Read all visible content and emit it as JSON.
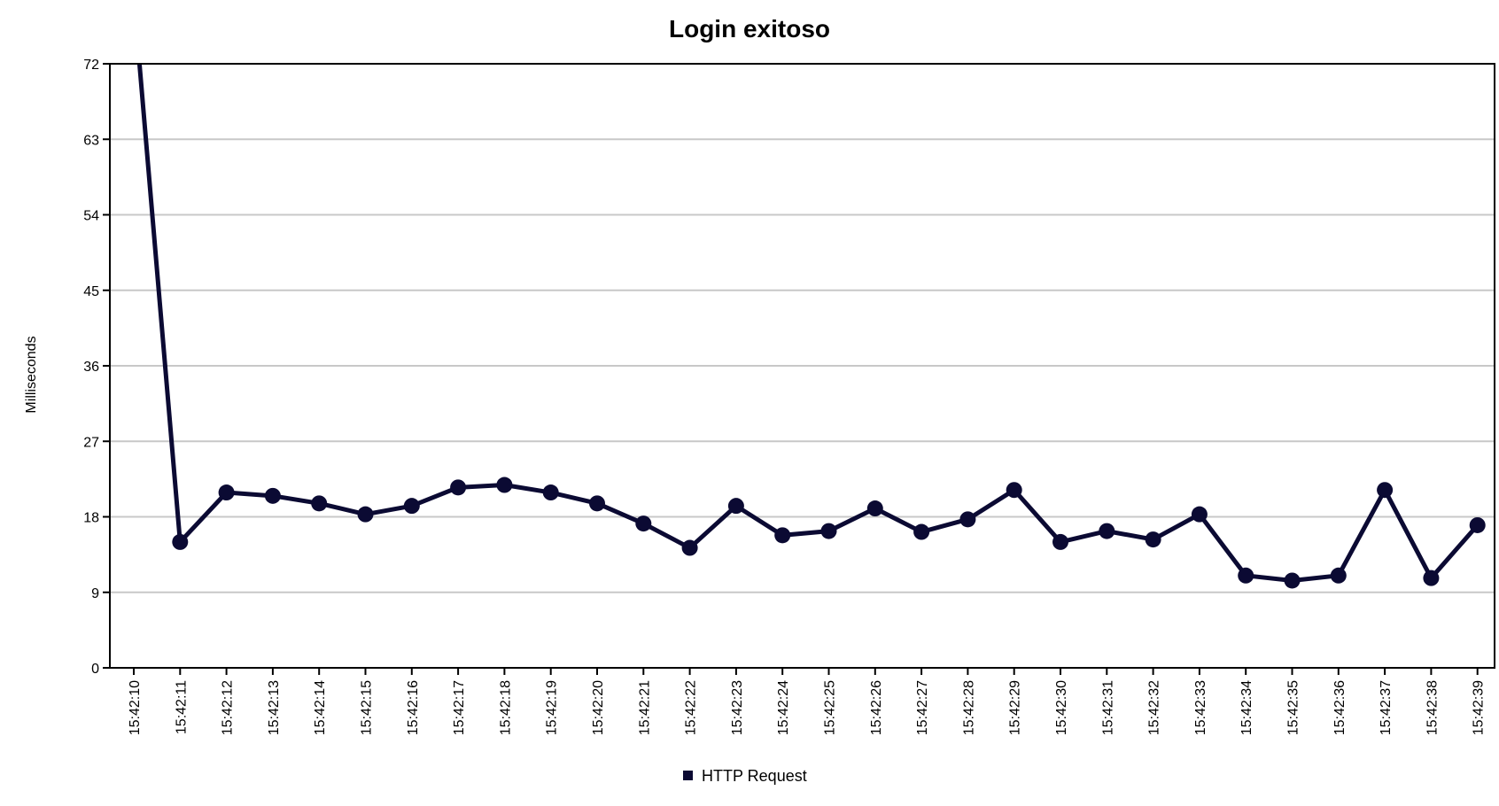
{
  "chart_data": {
    "type": "line",
    "title": "Login exitoso",
    "xlabel": "",
    "ylabel": "Milliseconds",
    "ylim": [
      0,
      72
    ],
    "yticks": [
      0,
      9,
      18,
      27,
      36,
      45,
      54,
      63,
      72
    ],
    "grid": true,
    "legend_position": "bottom",
    "categories": [
      "15:42:10",
      "15:42:11",
      "15:42:12",
      "15:42:13",
      "15:42:14",
      "15:42:15",
      "15:42:16",
      "15:42:17",
      "15:42:18",
      "15:42:19",
      "15:42:20",
      "15:42:21",
      "15:42:22",
      "15:42:23",
      "15:42:24",
      "15:42:25",
      "15:42:26",
      "15:42:27",
      "15:42:28",
      "15:42:29",
      "15:42:30",
      "15:42:31",
      "15:42:32",
      "15:42:33",
      "15:42:34",
      "15:42:35",
      "15:42:36",
      "15:42:37",
      "15:42:38",
      "15:42:39"
    ],
    "series": [
      {
        "name": "HTTP Request",
        "color": "#0b0a33",
        "values": [
          80,
          15.0,
          20.9,
          20.5,
          19.6,
          18.3,
          19.3,
          21.5,
          21.8,
          20.9,
          19.6,
          17.2,
          14.3,
          19.3,
          15.8,
          16.3,
          19.0,
          16.2,
          17.7,
          21.2,
          15.0,
          16.3,
          15.3,
          18.3,
          11.0,
          10.4,
          11.0,
          21.2,
          10.7,
          17.0
        ]
      }
    ]
  }
}
